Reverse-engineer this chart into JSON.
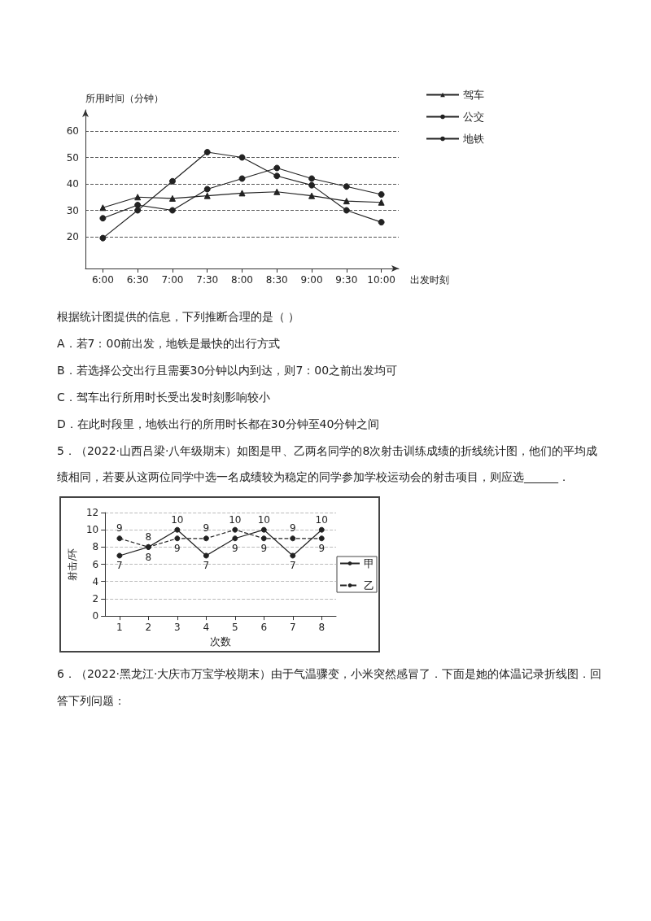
{
  "chart_data": [
    {
      "type": "line",
      "xlabel": "出发时刻",
      "ylabel": "所用时间（分钟）",
      "categories": [
        "6:00",
        "6:30",
        "7:00",
        "7:30",
        "8:00",
        "8:30",
        "9:00",
        "9:30",
        "10:00"
      ],
      "series": [
        {
          "name": "驾车",
          "color": "#222222",
          "marker": "triangle",
          "values": [
            31,
            35,
            34.5,
            35.5,
            36.5,
            37,
            35.5,
            33.5,
            33
          ]
        },
        {
          "name": "公交",
          "color": "#222222",
          "marker": "circle",
          "values": [
            27,
            32,
            30,
            38,
            42,
            46,
            42,
            39,
            36
          ]
        },
        {
          "name": "地铁",
          "color": "#222222",
          "marker": "circle",
          "values": [
            19.5,
            30,
            41,
            52,
            50,
            43,
            39.5,
            30,
            25.5
          ]
        }
      ],
      "ylim": [
        8,
        68
      ],
      "yticks": [
        20,
        30,
        40,
        50,
        60
      ],
      "grid": "y",
      "legend": "top right",
      "annotations": [
        "根据统计图提供的信息，下列推断合理的是（    ）",
        "A．若7：00前出发，地铁是最快的出行方式",
        "B．若选择公交出行且需要30分钟以内到达，则7：00之前出发均可",
        "C．驾车出行所用时长受出发时刻影响较小",
        "D．在此时段里，地铁出行的所用时长都在30分钟至40分钟之间"
      ]
    },
    {
      "type": "line",
      "title": "5．（2022·山西吕梁·八年级期末）如图是甲、乙两名同学的8次射击训练成绩的折线统计图，他们的平均成绩相同，若要从这两位同学中选一名成绩较为稳定的同学参加学校运动会的射击项目，则应选______．",
      "xlabel": "次数",
      "ylabel": "射击/环",
      "categories": [
        "1",
        "2",
        "3",
        "4",
        "5",
        "6",
        "7",
        "8"
      ],
      "series": [
        {
          "name": "甲",
          "color": "#222222",
          "line_style": "solid",
          "values": [
            7,
            8,
            10,
            7,
            9,
            10,
            7,
            10
          ]
        },
        {
          "name": "乙",
          "color": "#222222",
          "line_style": "dashed",
          "values": [
            9,
            8,
            9,
            9,
            10,
            9,
            9,
            9
          ]
        }
      ],
      "marker": "circle",
      "data_labels": true,
      "ylim": [
        0,
        12
      ],
      "yticks": [
        0,
        2,
        4,
        6,
        8,
        10,
        12
      ],
      "grid": "y",
      "legend": "right",
      "annotations": [
        "6．（2022·黑龙江·大庆市万宝学校期末）由于气温骤变，小米突然感冒了．下面是她的体温记录折线图．回答下列问题："
      ]
    }
  ]
}
